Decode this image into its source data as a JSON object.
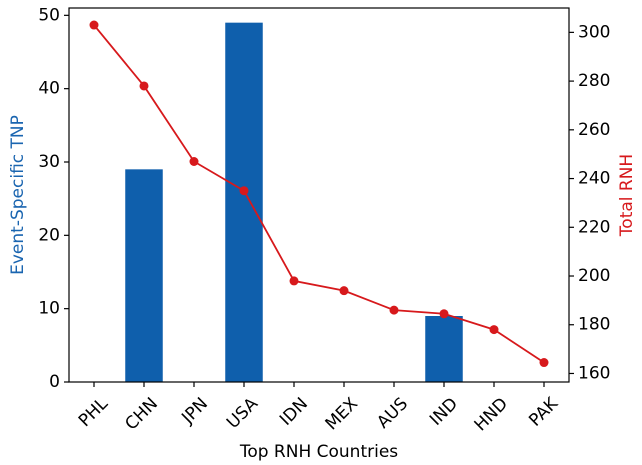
{
  "chart_data": {
    "type": "bar+line",
    "categories": [
      "PHL",
      "CHN",
      "JPN",
      "USA",
      "IDN",
      "MEX",
      "AUS",
      "IND",
      "HND",
      "PAK"
    ],
    "xlabel": "Top RNH Countries",
    "series": [
      {
        "name": "Event-Specific TNP",
        "type": "bar",
        "axis": "left",
        "color": "#0f5fac",
        "values": [
          0,
          29,
          0,
          49,
          0,
          0,
          0,
          9,
          0,
          0
        ]
      },
      {
        "name": "Total RNH",
        "type": "line",
        "axis": "right",
        "color": "#d7191c",
        "values": [
          303,
          278,
          247,
          235,
          198,
          194,
          186,
          184.5,
          178,
          164.5
        ]
      }
    ],
    "y_left": {
      "label": "Event-Specific TNP",
      "color": "#1a65b0",
      "range": [
        0,
        51
      ],
      "ticks": [
        0,
        10,
        20,
        30,
        40,
        50
      ]
    },
    "y_right": {
      "label": "Total RNH",
      "color": "#d7191c",
      "range": [
        156.5,
        310
      ],
      "ticks": [
        160,
        180,
        200,
        220,
        240,
        260,
        280,
        300
      ]
    },
    "grid": false,
    "legend": "none"
  }
}
